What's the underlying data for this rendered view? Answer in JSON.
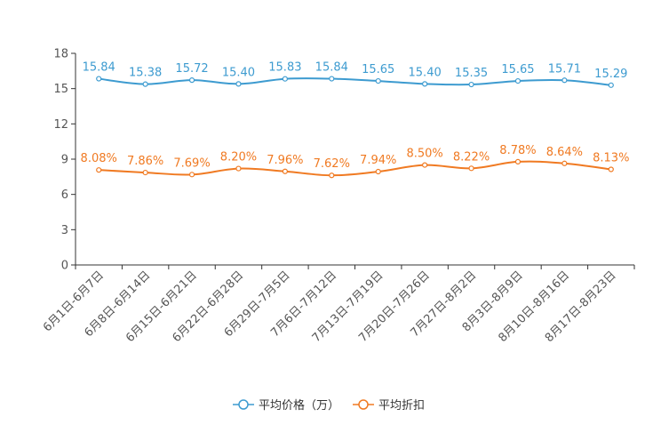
{
  "chart_data": {
    "type": "line",
    "categories": [
      "6月1日-6月7日",
      "6月8日-6月14日",
      "6月15日-6月21日",
      "6月22日-6月28日",
      "6月29日-7月5日",
      "7月6日-7月12日",
      "7月13日-7月19日",
      "7月20日-7月26日",
      "7月27日-8月2日",
      "8月3日-8月9日",
      "8月10日-8月16日",
      "8月17日-8月23日"
    ],
    "ylim": [
      0,
      18
    ],
    "yticks": [
      0,
      3,
      6,
      9,
      12,
      15,
      18
    ],
    "series": [
      {
        "name": "平均价格（万）",
        "color": "#3d9bd0",
        "values": [
          15.84,
          15.38,
          15.72,
          15.4,
          15.83,
          15.84,
          15.65,
          15.4,
          15.35,
          15.65,
          15.71,
          15.29
        ],
        "labels": [
          "15.84",
          "15.38",
          "15.72",
          "15.40",
          "15.83",
          "15.84",
          "15.65",
          "15.40",
          "15.35",
          "15.65",
          "15.71",
          "15.29"
        ]
      },
      {
        "name": "平均折扣",
        "color": "#f07a22",
        "values": [
          8.08,
          7.86,
          7.69,
          8.2,
          7.96,
          7.62,
          7.94,
          8.5,
          8.22,
          8.78,
          8.64,
          8.13
        ],
        "labels": [
          "8.08%",
          "7.86%",
          "7.69%",
          "8.20%",
          "7.96%",
          "7.62%",
          "7.94%",
          "8.50%",
          "8.22%",
          "8.78%",
          "8.64%",
          "8.13%"
        ]
      }
    ]
  }
}
